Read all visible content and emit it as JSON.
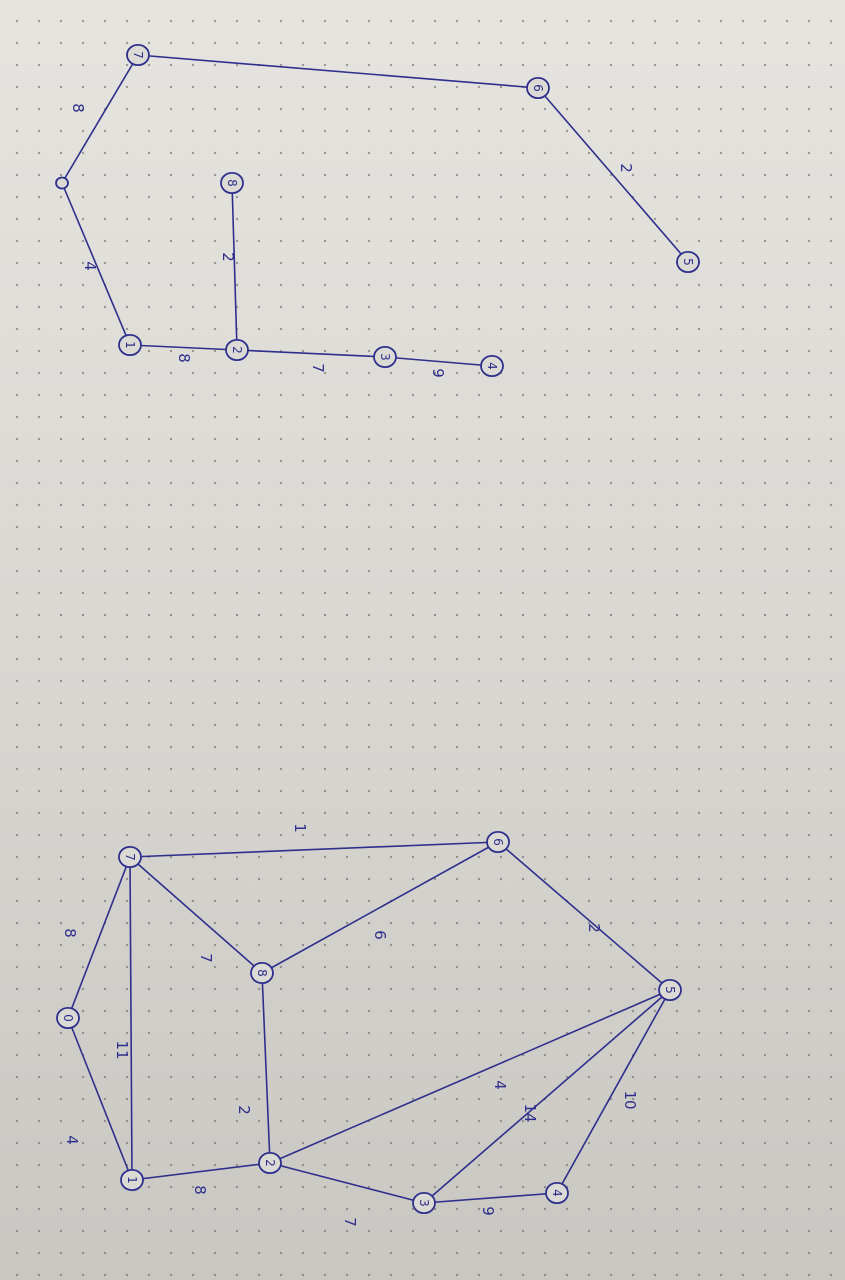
{
  "ink_color": "#2e2f8c",
  "graph": {
    "nodes": [
      {
        "id": "1",
        "label": "1"
      },
      {
        "id": "0",
        "label": "0"
      },
      {
        "id": "7",
        "label": "7"
      },
      {
        "id": "2",
        "label": "2"
      },
      {
        "id": "8",
        "label": "8"
      },
      {
        "id": "6",
        "label": "6"
      },
      {
        "id": "3",
        "label": "3"
      },
      {
        "id": "4",
        "label": "4"
      },
      {
        "id": "5",
        "label": "5"
      }
    ],
    "edges": [
      {
        "from": "1",
        "to": "0",
        "weight": "4"
      },
      {
        "from": "0",
        "to": "7",
        "weight": "8"
      },
      {
        "from": "1",
        "to": "7",
        "weight": "11"
      },
      {
        "from": "1",
        "to": "2",
        "weight": "8"
      },
      {
        "from": "7",
        "to": "8",
        "weight": "7"
      },
      {
        "from": "7",
        "to": "6",
        "weight": "1"
      },
      {
        "from": "2",
        "to": "8",
        "weight": "2"
      },
      {
        "from": "8",
        "to": "6",
        "weight": "6"
      },
      {
        "from": "2",
        "to": "5",
        "weight": "4"
      },
      {
        "from": "2",
        "to": "3",
        "weight": "7"
      },
      {
        "from": "3",
        "to": "5",
        "weight": "14"
      },
      {
        "from": "3",
        "to": "4",
        "weight": "9"
      },
      {
        "from": "4",
        "to": "5",
        "weight": "10"
      },
      {
        "from": "6",
        "to": "5",
        "weight": "2"
      }
    ]
  },
  "mst": {
    "nodes": [
      {
        "id": "1",
        "label": "1"
      },
      {
        "id": "0",
        "label": ""
      },
      {
        "id": "7",
        "label": "7"
      },
      {
        "id": "6",
        "label": "6"
      },
      {
        "id": "8",
        "label": "8"
      },
      {
        "id": "2",
        "label": "2"
      },
      {
        "id": "3",
        "label": "3"
      },
      {
        "id": "4",
        "label": "4"
      },
      {
        "id": "5",
        "label": "5"
      }
    ],
    "edges": [
      {
        "from": "1",
        "to": "0",
        "weight": "4"
      },
      {
        "from": "0",
        "to": "7",
        "weight": "8"
      },
      {
        "from": "7",
        "to": "6",
        "weight": ""
      },
      {
        "from": "6",
        "to": "5",
        "weight": "2"
      },
      {
        "from": "1",
        "to": "2",
        "weight": "8"
      },
      {
        "from": "2",
        "to": "8",
        "weight": "2"
      },
      {
        "from": "2",
        "to": "3",
        "weight": "7"
      },
      {
        "from": "3",
        "to": "4",
        "weight": "9"
      }
    ]
  }
}
